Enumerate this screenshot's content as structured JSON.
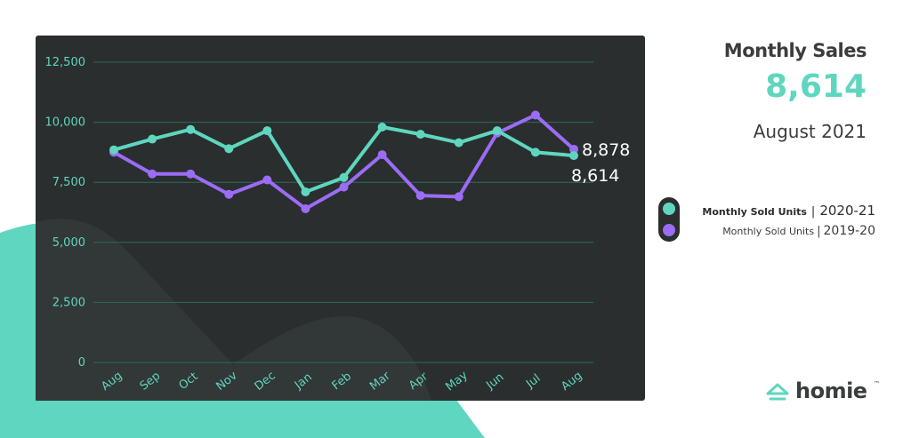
{
  "header": {
    "title": "Monthly Sales",
    "value": "8,614",
    "period": "August 2021"
  },
  "legend": [
    {
      "name": "Monthly Sold Units",
      "period": "2020-21",
      "color": "#5fd6bf"
    },
    {
      "name": "Monthly Sold Units",
      "period": "2019-20",
      "color": "#9b6cf5"
    }
  ],
  "brand": {
    "name": "homie",
    "trademark": "™",
    "icon": "home-icon"
  },
  "colors": {
    "accent": "#5fd6bf",
    "purple": "#9b6cf5",
    "chart_bg": "#2a2e2e",
    "text_dark": "#3a3d3d"
  },
  "chart_data": {
    "type": "line",
    "categories": [
      "Aug",
      "Sep",
      "Oct",
      "Nov",
      "Dec",
      "Jan",
      "Feb",
      "Mar",
      "Apr",
      "May",
      "Jun",
      "Jul",
      "Aug"
    ],
    "series": [
      {
        "name": "Monthly Sold Units 2020-21",
        "color": "#5fd6bf",
        "values": [
          8850,
          9300,
          9700,
          8900,
          9650,
          7100,
          7700,
          9800,
          9500,
          9150,
          9650,
          8750,
          8614
        ]
      },
      {
        "name": "Monthly Sold Units 2019-20",
        "color": "#9b6cf5",
        "values": [
          8750,
          7850,
          7850,
          7000,
          7600,
          6400,
          7300,
          8650,
          6950,
          6900,
          9550,
          10300,
          8878
        ]
      }
    ],
    "ylim": [
      0,
      12500
    ],
    "yticks": [
      0,
      2500,
      5000,
      7500,
      10000,
      12500
    ],
    "ytick_labels": [
      "0",
      "2,500",
      "5,000",
      "7,500",
      "10,000",
      "12,500"
    ],
    "end_labels": [
      "8,878",
      "8,614"
    ],
    "grid": true,
    "legend_position": "right"
  }
}
